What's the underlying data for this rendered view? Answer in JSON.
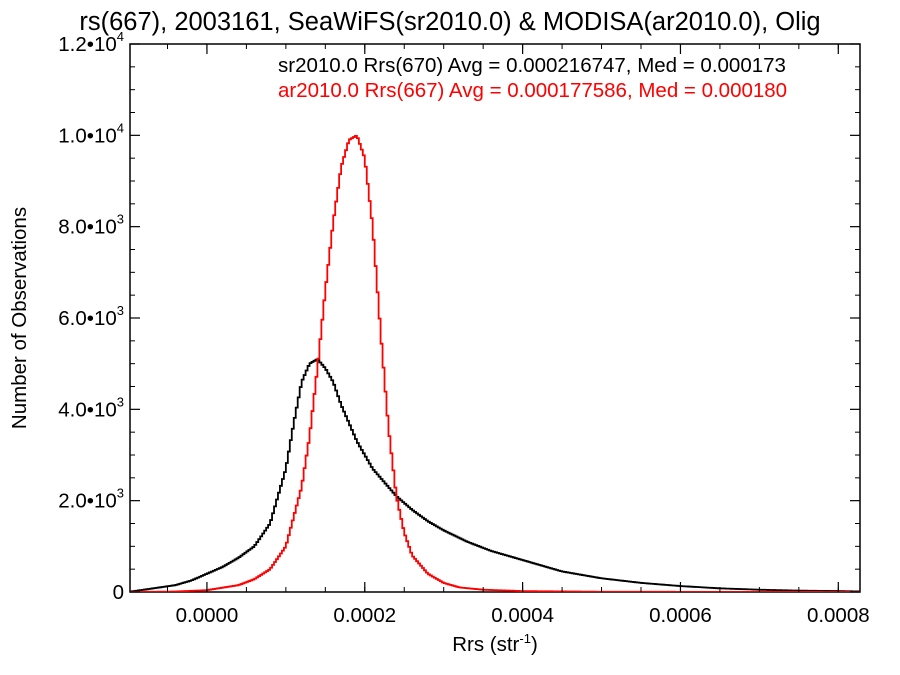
{
  "chart_data": {
    "type": "line",
    "title": "rs(667), 2003161, SeaWiFS(sr2010.0) & MODISA(ar2010.0), Olig",
    "xlabel": "Rrs (str",
    "xlabel_sup": "-1",
    "xlabel_end": ")",
    "ylabel": "Number of Observations",
    "xlim": [
      -9.75e-05,
      0.0008275
    ],
    "ylim": [
      0,
      12000
    ],
    "grid": false,
    "legend_placement": "top-right",
    "x_ticks": [
      {
        "value": 0.0,
        "label": "0.0000"
      },
      {
        "value": 0.0002,
        "label": "0.0002"
      },
      {
        "value": 0.0004,
        "label": "0.0004"
      },
      {
        "value": 0.0006,
        "label": "0.0006"
      },
      {
        "value": 0.0008,
        "label": "0.0008"
      }
    ],
    "y_ticks": [
      {
        "value": 0,
        "label": "0",
        "exp": ""
      },
      {
        "value": 2000,
        "label": "2.0•10",
        "exp": "3"
      },
      {
        "value": 4000,
        "label": "4.0•10",
        "exp": "3"
      },
      {
        "value": 6000,
        "label": "6.0•10",
        "exp": "3"
      },
      {
        "value": 8000,
        "label": "8.0•10",
        "exp": "3"
      },
      {
        "value": 10000,
        "label": "1.0•10",
        "exp": "4"
      },
      {
        "value": 12000,
        "label": "1.2•10",
        "exp": "4"
      }
    ],
    "bin_width": 2.5e-06,
    "annotations": [
      "sr2010.0 Rrs(670) Avg = 0.000216747, Med = 0.000173",
      "ar2010.0 Rrs(667) Avg = 0.000177586, Med = 0.000180"
    ],
    "series": [
      {
        "color": "#000000",
        "x": [
          -0.0001,
          -8e-05,
          -6e-05,
          -4e-05,
          -2e-05,
          0.0,
          2e-05,
          4e-05,
          6e-05,
          8e-05,
          0.0001,
          0.00011,
          0.00012,
          0.00013,
          0.00014,
          0.00015,
          0.00016,
          0.00017,
          0.00018,
          0.00019,
          0.0002,
          0.00021,
          0.00022,
          0.00024,
          0.00026,
          0.00028,
          0.0003,
          0.00033,
          0.00036,
          0.0004,
          0.00045,
          0.0005,
          0.00055,
          0.0006,
          0.00065,
          0.0007,
          0.00075,
          0.0008,
          0.00083
        ],
        "values": [
          0,
          50,
          100,
          150,
          250,
          400,
          550,
          750,
          1000,
          1500,
          2700,
          3700,
          4600,
          5000,
          5100,
          4900,
          4600,
          4100,
          3700,
          3300,
          3000,
          2700,
          2500,
          2100,
          1800,
          1550,
          1350,
          1100,
          900,
          700,
          450,
          300,
          200,
          130,
          80,
          50,
          30,
          20,
          10
        ]
      },
      {
        "color": "#ff0000",
        "x": [
          -0.0001,
          -4e-05,
          0.0,
          4e-05,
          6e-05,
          8e-05,
          0.0001,
          0.00012,
          0.00013,
          0.00014,
          0.00015,
          0.00016,
          0.00017,
          0.00018,
          0.00019,
          0.0002,
          0.00021,
          0.00022,
          0.00023,
          0.00024,
          0.00025,
          0.00026,
          0.00028,
          0.0003,
          0.00032,
          0.00035,
          0.0004,
          0.0005,
          0.00083
        ],
        "values": [
          0,
          10,
          40,
          150,
          280,
          500,
          1000,
          2300,
          3400,
          4900,
          6600,
          8100,
          9300,
          9900,
          10000,
          9500,
          8000,
          5700,
          3600,
          2100,
          1300,
          800,
          400,
          200,
          100,
          50,
          20,
          5,
          0
        ]
      }
    ]
  }
}
